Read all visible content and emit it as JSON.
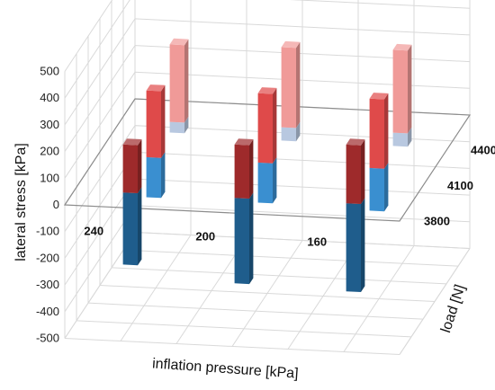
{
  "chart_data": {
    "type": "bar",
    "subtype": "3d-column",
    "title": "",
    "ylabel": "lateral stress [kPa]",
    "xlabel": "inflation pressure  [kPa]",
    "zlabel": "load [N]",
    "ylim": [
      -500,
      500
    ],
    "yticks": [
      "500",
      "400",
      "300",
      "200",
      "100",
      "0",
      "-100",
      "-200",
      "-300",
      "-400",
      "-500"
    ],
    "x_categories": [
      "240",
      "200",
      "160"
    ],
    "z_categories": [
      "3800",
      "4100",
      "4400"
    ],
    "grid": true,
    "series": [
      {
        "name": "3800",
        "values": [
          [
            -270,
            180
          ],
          [
            -320,
            200
          ],
          [
            -330,
            220
          ]
        ]
      },
      {
        "name": "4100",
        "values": [
          [
            -150,
            250
          ],
          [
            -150,
            260
          ],
          [
            -160,
            260
          ]
        ]
      },
      {
        "name": "4400",
        "values": [
          [
            -40,
            290
          ],
          [
            -50,
            300
          ],
          [
            -50,
            310
          ]
        ]
      }
    ],
    "colors": {
      "3800": {
        "neg": "#1f5d8c",
        "pos": "#9e2a2b"
      },
      "4100": {
        "neg": "#3a8fd0",
        "pos": "#df4a4a"
      },
      "4400": {
        "neg": "#b8c8e0",
        "pos": "#f09a98"
      }
    }
  }
}
